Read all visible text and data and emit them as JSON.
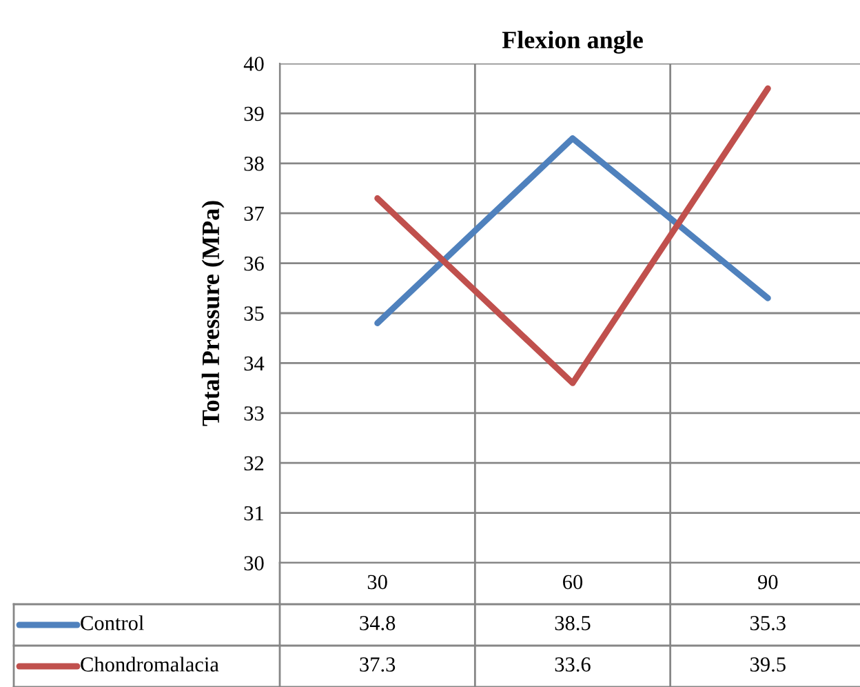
{
  "chart_data": {
    "type": "line",
    "title": "Flexion angle",
    "ylabel": "Total Pressure (MPa)",
    "categories": [
      "30",
      "60",
      "90"
    ],
    "series": [
      {
        "name": "Control",
        "color": "#4f81bd",
        "values": [
          34.8,
          38.5,
          35.3
        ]
      },
      {
        "name": "Chondromalacia",
        "color": "#c0504d",
        "values": [
          37.3,
          33.6,
          39.5
        ]
      }
    ],
    "ylim": [
      30,
      40
    ],
    "yticks": [
      30,
      31,
      32,
      33,
      34,
      35,
      36,
      37,
      38,
      39,
      40
    ],
    "grid": true,
    "legend": "bottom",
    "data_labels": true,
    "marker": "none",
    "line_style": "solid"
  }
}
